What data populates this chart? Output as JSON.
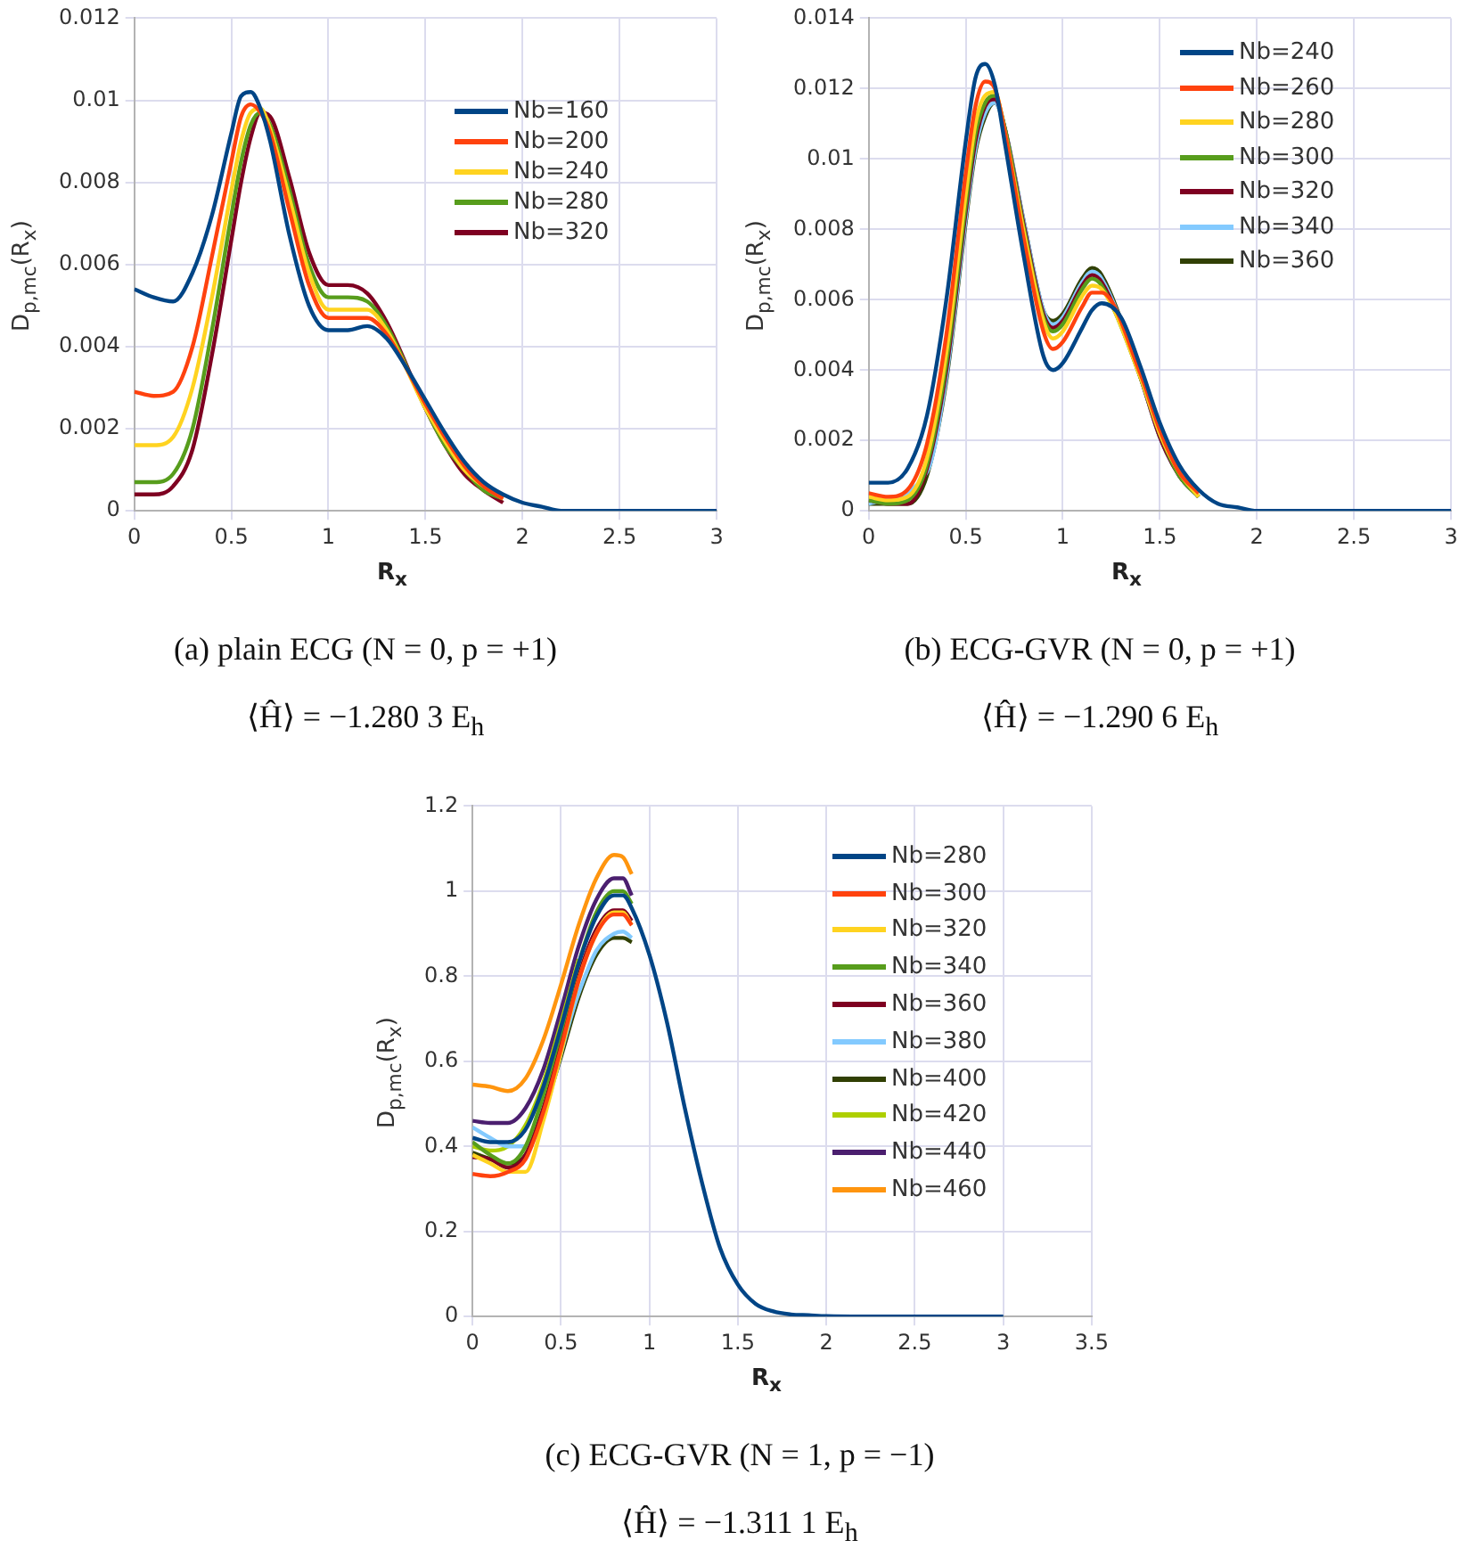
{
  "chart_data": [
    {
      "type": "line",
      "xlabel": "R$_{x}$",
      "ylabel": "D$_{p,mc}$(R$_{x}$)",
      "xlim": [
        0,
        3
      ],
      "xticks": [
        0,
        0.5,
        1,
        1.5,
        2,
        2.5,
        3
      ],
      "ylim": [
        0,
        0.012
      ],
      "yticks": [
        0,
        0.002,
        0.004,
        0.006,
        0.008,
        0.01,
        0.012
      ],
      "grid": true,
      "legend": "top right",
      "annotations": [
        "(a) plain ECG (N = 0, p = +1)",
        "⟨Ĥ⟩ = −1.280 3 E$_{h}$"
      ],
      "x": [
        0,
        0.1,
        0.2,
        0.3,
        0.4,
        0.5,
        0.55,
        0.6,
        0.65,
        0.7,
        0.8,
        0.9,
        1,
        1.1,
        1.2,
        1.3,
        1.4,
        1.5,
        1.6,
        1.7,
        1.8,
        1.9,
        2,
        2.1,
        2.2,
        2.4,
        2.6,
        2.8,
        3
      ],
      "series": [
        {
          "name": "Nb=160",
          "color": "#004586",
          "values": [
            0.0054,
            0.0052,
            0.0051,
            0.0058,
            0.0072,
            0.0092,
            0.0101,
            0.0102,
            0.0098,
            0.009,
            0.0067,
            0.005,
            0.0044,
            0.0044,
            0.0045,
            0.0042,
            0.0035,
            0.0027,
            0.0019,
            0.0012,
            0.0007,
            0.0004,
            0.0002,
            0.0001,
            0,
            0,
            0,
            0,
            0
          ]
        },
        {
          "name": "Nb=200",
          "color": "#ff420e",
          "values": [
            0.0029,
            0.0028,
            0.0029,
            0.004,
            0.0062,
            0.0085,
            0.0096,
            0.0099,
            0.0097,
            0.0092,
            0.0073,
            0.0055,
            0.0047,
            0.0047,
            0.0047,
            0.0043,
            null,
            0.0026,
            0.0018,
            0.0011,
            0.0006,
            0.0003,
            null,
            null,
            null,
            null,
            null,
            null,
            null
          ]
        },
        {
          "name": "Nb=240",
          "color": "#ffd320",
          "values": [
            0.0016,
            0.0016,
            0.0018,
            0.003,
            0.0052,
            0.0078,
            0.009,
            0.0097,
            0.0098,
            0.0093,
            0.0076,
            0.0058,
            0.0049,
            0.0049,
            0.0049,
            0.0044,
            null,
            0.0025,
            0.0017,
            0.001,
            0.0006,
            0.0003,
            null,
            null,
            null,
            null,
            null,
            null,
            null
          ]
        },
        {
          "name": "Nb=280",
          "color": "#579d1c",
          "values": [
            0.0007,
            0.0007,
            0.0009,
            0.002,
            0.0044,
            0.0072,
            0.0085,
            0.0094,
            0.0097,
            0.0094,
            0.0078,
            0.006,
            0.0052,
            0.0052,
            0.0051,
            0.0045,
            null,
            0.0025,
            0.0016,
            0.001,
            0.0005,
            0.0003,
            null,
            null,
            null,
            null,
            null,
            null,
            null
          ]
        },
        {
          "name": "Nb=320",
          "color": "#7e0021",
          "values": [
            0.0004,
            0.0004,
            0.0006,
            0.0015,
            0.0038,
            0.0066,
            0.008,
            0.0091,
            0.0097,
            0.0096,
            0.0081,
            0.0063,
            0.0055,
            0.0055,
            0.0053,
            0.0046,
            null,
            0.0025,
            0.0016,
            0.0009,
            0.0005,
            0.0002,
            null,
            null,
            null,
            null,
            null,
            null,
            null
          ]
        }
      ]
    },
    {
      "type": "line",
      "xlabel": "R$_{x}$",
      "ylabel": "D$_{p,mc}$(R$_{x}$)",
      "xlim": [
        0,
        3
      ],
      "xticks": [
        0,
        0.5,
        1,
        1.5,
        2,
        2.5,
        3
      ],
      "ylim": [
        0,
        0.014
      ],
      "yticks": [
        0,
        0.002,
        0.004,
        0.006,
        0.008,
        0.01,
        0.012,
        0.014
      ],
      "grid": true,
      "legend": "top right",
      "annotations": [
        "(b) ECG-GVR (N = 0, p = +1)",
        "⟨Ĥ⟩ = −1.290 6 E$_{h}$"
      ],
      "x": [
        0,
        0.1,
        0.2,
        0.3,
        0.4,
        0.5,
        0.55,
        0.6,
        0.65,
        0.7,
        0.8,
        0.9,
        0.95,
        1,
        1.1,
        1.15,
        1.2,
        1.3,
        1.4,
        1.5,
        1.6,
        1.7,
        1.8,
        1.9,
        2,
        2.2,
        2.4,
        2.6,
        2.8,
        3
      ],
      "series": [
        {
          "name": "Nb=240",
          "color": "#004586",
          "values": [
            0.0008,
            0.0008,
            0.0012,
            0.0027,
            0.006,
            0.0105,
            0.0123,
            0.0127,
            0.0121,
            0.0105,
            0.0072,
            0.0044,
            0.004,
            0.0042,
            0.0052,
            0.0057,
            0.0059,
            0.0055,
            0.0041,
            0.0025,
            0.0013,
            0.0006,
            0.0002,
            0.0001,
            0,
            0,
            0,
            0,
            0,
            0
          ]
        },
        {
          "name": "Nb=260",
          "color": "#ff420e",
          "values": [
            0.0005,
            0.0004,
            0.0006,
            0.0019,
            0.005,
            0.0096,
            0.0115,
            0.0122,
            0.012,
            0.0108,
            0.0077,
            0.0051,
            0.0046,
            0.0048,
            0.0058,
            0.0062,
            0.0062,
            null,
            0.0039,
            0.0023,
            0.0011,
            0.0005,
            null,
            null,
            null,
            null,
            null,
            null,
            null,
            null
          ]
        },
        {
          "name": "Nb=280",
          "color": "#ffd320",
          "values": [
            0.0004,
            0.0003,
            0.0004,
            0.0015,
            0.0045,
            0.009,
            0.011,
            0.0118,
            0.0119,
            0.0108,
            0.0079,
            0.0054,
            0.0049,
            0.0051,
            0.0061,
            0.0064,
            0.0063,
            null,
            0.0038,
            0.0022,
            0.0011,
            0.0004,
            null,
            null,
            null,
            null,
            null,
            null,
            null,
            null
          ]
        },
        {
          "name": "Nb=300",
          "color": "#579d1c",
          "values": [
            0.0003,
            0.0002,
            0.0003,
            0.0013,
            0.0042,
            0.0087,
            0.0107,
            0.0116,
            0.0118,
            0.0109,
            0.008,
            0.0055,
            0.0051,
            0.0053,
            0.0063,
            0.0066,
            0.0064,
            null,
            0.0038,
            0.0022,
            0.001,
            0.0004,
            null,
            null,
            null,
            null,
            null,
            null,
            null,
            null
          ]
        },
        {
          "name": "Nb=320",
          "color": "#7e0021",
          "values": [
            0.0003,
            0.0002,
            0.0002,
            0.0012,
            0.004,
            0.0085,
            0.0105,
            0.0115,
            0.0117,
            0.0109,
            0.0081,
            0.0056,
            0.0052,
            0.0054,
            0.0064,
            0.0067,
            0.0065,
            null,
            0.0038,
            0.0021,
            0.001,
            0.0004,
            null,
            null,
            null,
            null,
            null,
            null,
            null,
            null
          ]
        },
        {
          "name": "Nb=340",
          "color": "#83caff",
          "values": [
            0.0002,
            null,
            null,
            0.0011,
            0.0038,
            0.0083,
            0.0103,
            0.0113,
            0.0116,
            0.0109,
            0.0082,
            0.0057,
            0.0053,
            0.0055,
            0.0065,
            0.0068,
            0.0066,
            null,
            0.0038,
            0.0021,
            0.001,
            0.0004,
            null,
            null,
            null,
            null,
            null,
            null,
            null,
            null
          ]
        },
        {
          "name": "Nb=360",
          "color": "#314004",
          "values": [
            0.0002,
            0.0002,
            0.0002,
            0.001,
            0.0037,
            0.0082,
            0.0102,
            0.0112,
            0.0116,
            0.0109,
            0.0082,
            0.0057,
            0.0054,
            0.0056,
            0.0066,
            0.0069,
            0.0067,
            null,
            0.0038,
            0.0021,
            0.001,
            0.0004,
            null,
            null,
            null,
            null,
            null,
            null,
            null,
            null
          ]
        }
      ]
    },
    {
      "type": "line",
      "xlabel": "R$_{x}$",
      "ylabel": "D$_{p,mc}$(R$_{x}$)",
      "xlim": [
        0,
        3.5
      ],
      "xticks": [
        0,
        0.5,
        1,
        1.5,
        2,
        2.5,
        3,
        3.5
      ],
      "ylim": [
        0,
        1.2
      ],
      "yticks": [
        0,
        0.2,
        0.4,
        0.6,
        0.8,
        1,
        1.2
      ],
      "grid": true,
      "legend": "top right",
      "annotations": [
        "(c) ECG-GVR (N = 1, p = −1)",
        "⟨Ĥ⟩ = −1.311 1 E$_{h}$"
      ],
      "x": [
        0,
        0.1,
        0.2,
        0.3,
        0.4,
        0.5,
        0.6,
        0.7,
        0.8,
        0.85,
        0.9,
        1,
        1.1,
        1.2,
        1.3,
        1.4,
        1.5,
        1.6,
        1.7,
        1.8,
        1.9,
        2,
        2.2,
        2.4,
        2.6,
        2.8,
        3
      ],
      "series": [
        {
          "name": "Nb=280",
          "color": "#004586",
          "values": [
            0.42,
            0.41,
            0.41,
            0.44,
            0.54,
            0.68,
            0.83,
            0.94,
            0.99,
            0.99,
            0.96,
            0.85,
            0.69,
            0.49,
            0.31,
            0.16,
            0.075,
            0.03,
            0.012,
            0.005,
            0.003,
            0.001,
            0,
            0,
            0,
            0,
            0
          ]
        },
        {
          "name": "Nb=300",
          "color": "#ff420e",
          "values": [
            0.335,
            0.33,
            0.34,
            0.37,
            0.48,
            0.63,
            0.79,
            0.9,
            0.945,
            0.945,
            0.92,
            null,
            null,
            null,
            null,
            null,
            null,
            null,
            null,
            null,
            null,
            null,
            null,
            null,
            null,
            null,
            null
          ]
        },
        {
          "name": "Nb=320",
          "color": "#ffd320",
          "values": [
            0.38,
            0.36,
            0.34,
            0.34,
            0.46,
            0.62,
            0.79,
            0.9,
            0.95,
            0.95,
            0.92,
            null,
            null,
            null,
            null,
            null,
            null,
            null,
            null,
            null,
            null,
            null,
            null,
            null,
            null,
            null,
            null
          ]
        },
        {
          "name": "Nb=340",
          "color": "#579d1c",
          "values": [
            0.41,
            0.38,
            0.36,
            0.4,
            0.52,
            0.67,
            0.83,
            0.95,
            1.0,
            1.0,
            0.97,
            null,
            null,
            null,
            null,
            null,
            null,
            null,
            null,
            null,
            null,
            null,
            null,
            null,
            null,
            null,
            null
          ]
        },
        {
          "name": "Nb=360",
          "color": "#7e0021",
          "values": [
            0.375,
            0.37,
            0.35,
            0.38,
            0.49,
            0.64,
            0.8,
            0.91,
            0.955,
            0.955,
            0.93,
            null,
            null,
            null,
            null,
            null,
            null,
            null,
            null,
            null,
            null,
            null,
            null,
            null,
            null,
            null,
            null
          ]
        },
        {
          "name": "Nb=380",
          "color": "#83caff",
          "values": [
            0.445,
            0.42,
            0.4,
            0.4,
            null,
            null,
            0.76,
            0.86,
            0.9,
            0.905,
            0.89,
            null,
            null,
            null,
            null,
            null,
            null,
            null,
            null,
            null,
            null,
            null,
            null,
            null,
            null,
            null,
            null
          ]
        },
        {
          "name": "Nb=400",
          "color": "#314004",
          "values": [
            0.385,
            0.37,
            0.36,
            0.38,
            0.48,
            0.61,
            0.75,
            0.85,
            0.89,
            0.89,
            0.88,
            null,
            null,
            null,
            null,
            null,
            null,
            null,
            null,
            null,
            null,
            null,
            null,
            null,
            null,
            null,
            null
          ]
        },
        {
          "name": "Nb=420",
          "color": "#aecf00",
          "values": [
            0.4,
            0.39,
            0.4,
            0.45,
            0.55,
            0.69,
            0.84,
            null,
            null,
            null,
            null,
            null,
            null,
            null,
            null,
            null,
            null,
            null,
            null,
            null,
            null,
            null,
            null,
            null,
            null,
            null,
            null
          ]
        },
        {
          "name": "Nb=440",
          "color": "#4b1f6f",
          "values": [
            0.46,
            0.455,
            0.455,
            0.49,
            0.58,
            0.72,
            0.87,
            0.98,
            1.03,
            1.03,
            0.99,
            null,
            null,
            null,
            null,
            null,
            null,
            null,
            null,
            null,
            null,
            null,
            null,
            null,
            null,
            null,
            null
          ]
        },
        {
          "name": "Nb=460",
          "color": "#ff950e",
          "values": [
            0.545,
            0.54,
            0.53,
            0.56,
            0.65,
            0.78,
            0.92,
            1.03,
            1.085,
            1.08,
            1.04,
            null,
            null,
            null,
            null,
            null,
            null,
            null,
            null,
            null,
            null,
            null,
            null,
            null,
            null,
            null,
            null
          ]
        }
      ]
    }
  ]
}
